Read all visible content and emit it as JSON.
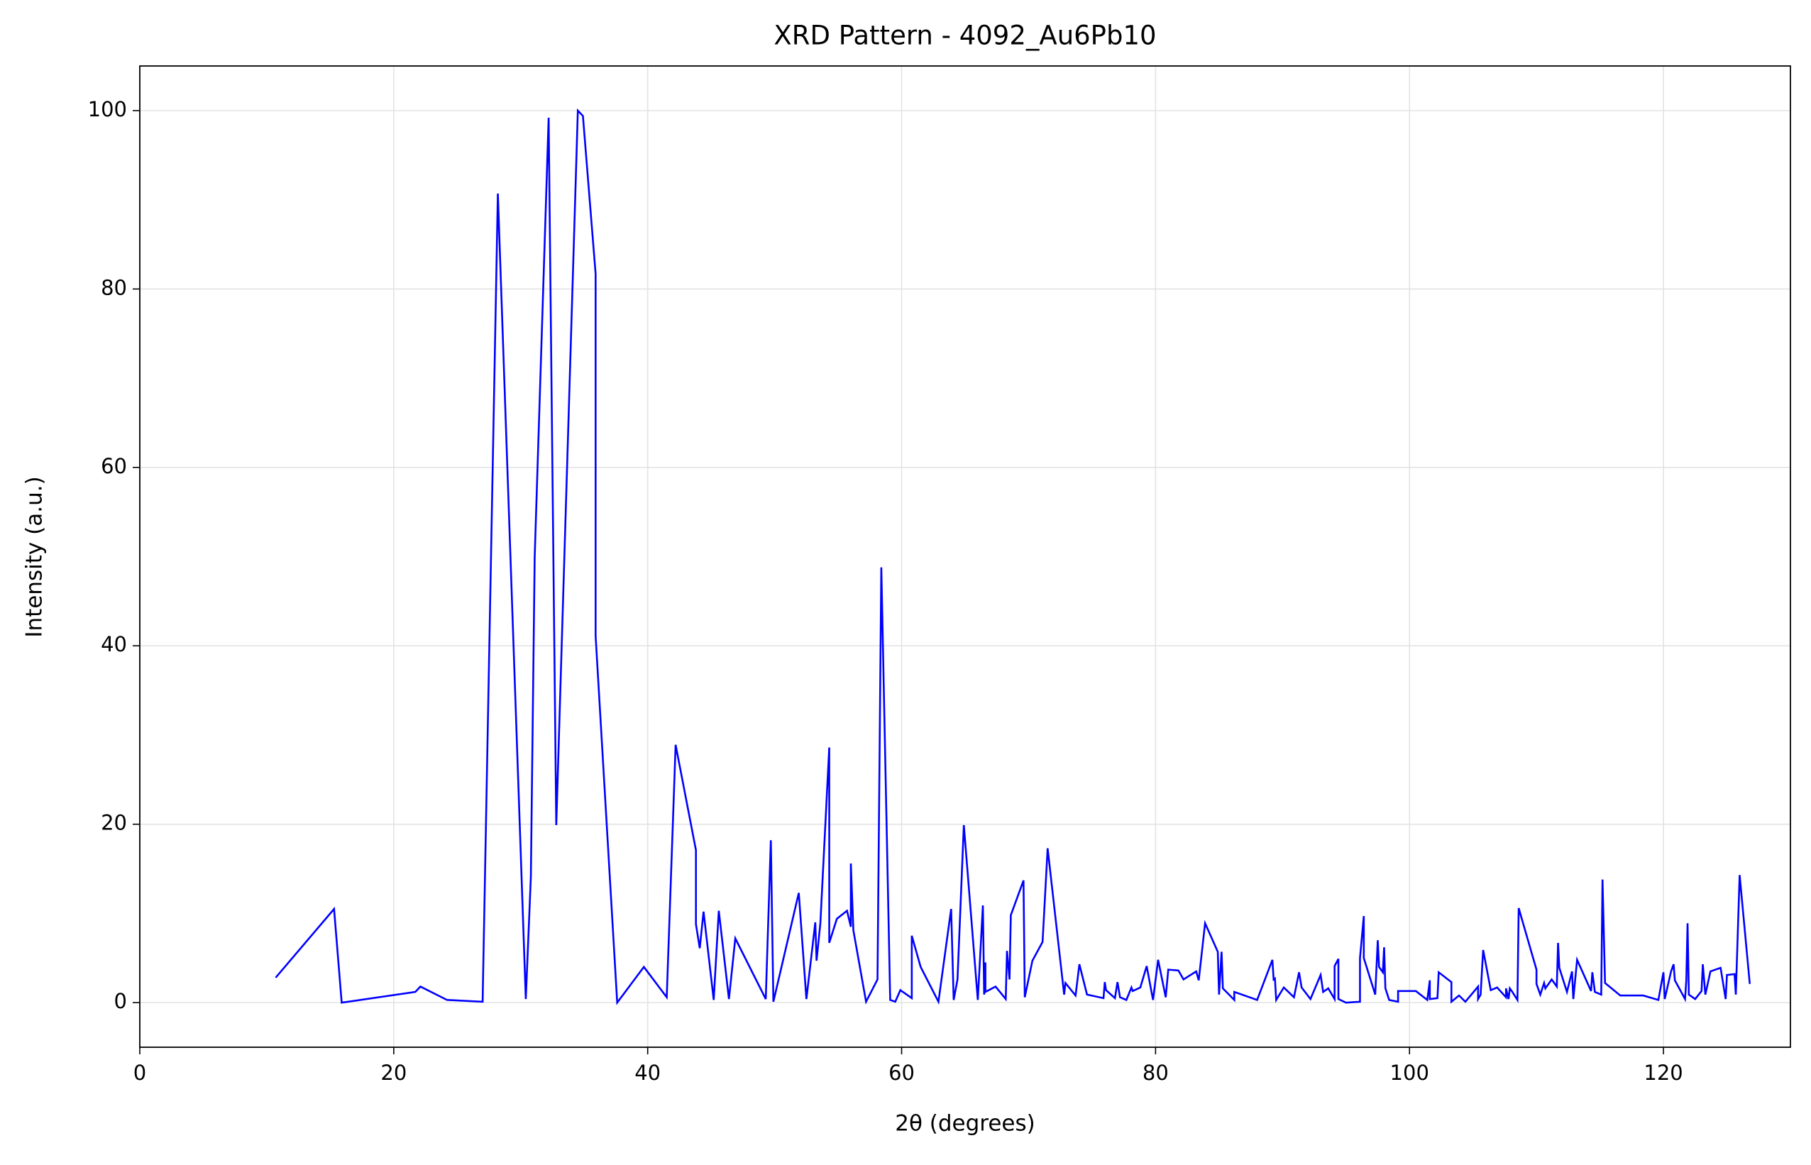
{
  "chart_data": {
    "type": "line",
    "title": "XRD Pattern - 4092_Au6Pb10",
    "xlabel": "2θ (degrees)",
    "ylabel": "Intensity (a.u.)",
    "color": "#0000ff",
    "grid": true,
    "xlim": [
      0,
      130
    ],
    "ylim": [
      -5,
      105
    ],
    "xticks": [
      0,
      20,
      40,
      60,
      80,
      100,
      120
    ],
    "yticks": [
      0,
      20,
      40,
      60,
      80,
      100
    ],
    "x": [
      10.7,
      15.3,
      15.9,
      21.7,
      22.1,
      24.2,
      27.0,
      28.2,
      30.4,
      30.8,
      31.1,
      32.2,
      32.8,
      34.5,
      34.9,
      35.9,
      35.9,
      37.6,
      39.7,
      41.5,
      42.2,
      43.8,
      43.8,
      44.1,
      44.4,
      45.2,
      45.6,
      46.4,
      46.9,
      49.3,
      49.7,
      49.9,
      51.9,
      52.5,
      53.2,
      53.3,
      53.6,
      54.3,
      54.3,
      54.9,
      55.7,
      56.0,
      56.0,
      56.2,
      57.2,
      58.1,
      58.4,
      59.1,
      59.5,
      59.9,
      60.8,
      60.8,
      61.5,
      62.9,
      63.9,
      64.1,
      64.4,
      64.9,
      66.0,
      66.4,
      66.5,
      66.6,
      66.6,
      67.4,
      68.2,
      68.3,
      68.5,
      68.6,
      69.6,
      69.7,
      70.3,
      71.1,
      71.5,
      72.8,
      72.9,
      73.7,
      74.0,
      74.6,
      75.9,
      76.0,
      76.1,
      76.8,
      77.0,
      77.2,
      77.7,
      78.1,
      78.2,
      78.8,
      79.3,
      79.8,
      80.2,
      80.8,
      81.0,
      81.8,
      82.2,
      83.2,
      83.4,
      83.9,
      84.9,
      85.0,
      85.2,
      85.3,
      86.2,
      86.2,
      88.0,
      89.2,
      89.3,
      89.4,
      89.5,
      90.1,
      90.9,
      91.3,
      91.5,
      92.2,
      93.0,
      93.2,
      93.6,
      94.1,
      94.1,
      94.4,
      94.4,
      95.0,
      96.1,
      96.1,
      96.4,
      96.4,
      97.3,
      97.5,
      97.6,
      97.9,
      98.0,
      98.1,
      98.4,
      99.1,
      99.1,
      100.5,
      101.4,
      101.6,
      101.6,
      102.2,
      102.3,
      103.3,
      103.3,
      103.9,
      104.4,
      105.4,
      105.4,
      105.6,
      105.8,
      106.4,
      106.9,
      107.6,
      107.6,
      107.8,
      107.9,
      108.1,
      108.5,
      108.6,
      110.0,
      110.0,
      110.3,
      110.6,
      110.7,
      111.2,
      111.6,
      111.7,
      111.8,
      112.4,
      112.8,
      112.9,
      113.2,
      114.3,
      114.4,
      114.6,
      115.1,
      115.2,
      115.4,
      116.6,
      118.4,
      119.6,
      120.0,
      120.1,
      120.6,
      120.8,
      120.9,
      121.7,
      121.8,
      121.9,
      122.0,
      122.5,
      123.0,
      123.1,
      123.3,
      123.7,
      124.5,
      124.9,
      125.0,
      125.6,
      125.7,
      126.0,
      126.8
    ],
    "values": [
      2.8,
      10.5,
      0,
      1.2,
      1.8,
      0.3,
      0.1,
      90.7,
      0.4,
      14.1,
      49.9,
      99.2,
      19.9,
      100,
      99.4,
      81.7,
      41.1,
      0,
      4.0,
      0.6,
      28.9,
      17.1,
      8.8,
      6.1,
      10.2,
      0.3,
      10.3,
      0.4,
      7.2,
      0.4,
      18.2,
      0.1,
      12.3,
      0.4,
      9.0,
      4.7,
      8.9,
      28.6,
      6.7,
      9.4,
      10.3,
      8.5,
      15.6,
      8.1,
      0.1,
      2.6,
      48.8,
      0.3,
      0.1,
      1.4,
      0.5,
      7.5,
      4.0,
      0.1,
      10.5,
      0.3,
      2.6,
      19.9,
      0.3,
      10.9,
      0.9,
      4.5,
      1.2,
      1.8,
      0.4,
      5.8,
      2.6,
      9.8,
      13.7,
      0.6,
      4.7,
      6.8,
      17.3,
      0.9,
      2.2,
      0.8,
      4.3,
      0.9,
      0.5,
      2.3,
      1.4,
      0.5,
      2.3,
      0.6,
      0.3,
      1.7,
      1.3,
      1.7,
      4.1,
      0.3,
      4.8,
      0.6,
      3.7,
      3.6,
      2.6,
      3.5,
      2.5,
      8.9,
      5.7,
      0.9,
      5.7,
      1.6,
      0.3,
      1.2,
      0.3,
      4.8,
      2.6,
      2.7,
      0.3,
      1.7,
      0.6,
      3.4,
      1.7,
      0.4,
      3.1,
      1.2,
      1.6,
      0.4,
      4.1,
      4.9,
      0.4,
      0,
      0.1,
      5.0,
      9.7,
      5.0,
      0.9,
      7.0,
      4.0,
      3.4,
      6.2,
      1.6,
      0.3,
      0.1,
      1.3,
      1.3,
      0.3,
      2.5,
      0.4,
      0.5,
      3.4,
      2.3,
      0.1,
      0.8,
      0.1,
      1.8,
      0.4,
      0.9,
      5.9,
      1.4,
      1.7,
      0.6,
      1.6,
      0.4,
      1.6,
      1.2,
      0.3,
      10.6,
      3.7,
      2.1,
      0.9,
      2.2,
      1.6,
      2.6,
      1.8,
      6.7,
      3.9,
      1.2,
      3.5,
      0.4,
      4.8,
      1.3,
      3.4,
      1.2,
      0.9,
      13.8,
      2.2,
      0.8,
      0.8,
      0.3,
      3.4,
      0.4,
      3.5,
      4.3,
      2.5,
      0.4,
      2.5,
      8.9,
      0.9,
      0.4,
      1.3,
      4.3,
      0.9,
      3.5,
      3.9,
      0.4,
      3.1,
      3.2,
      0.9,
      14.3,
      2.1
    ]
  }
}
